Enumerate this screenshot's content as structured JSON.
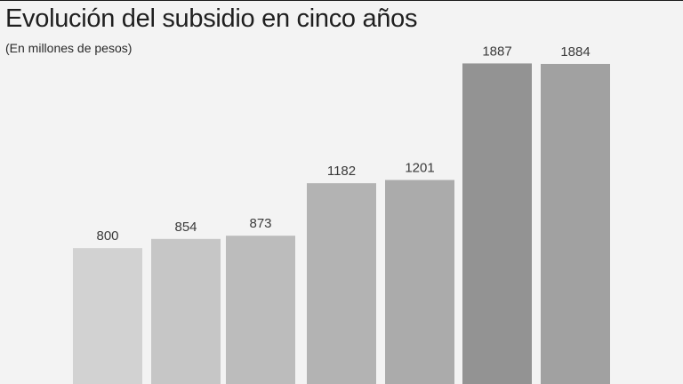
{
  "chart_data": {
    "type": "bar",
    "title": "Evolución del subsidio en cinco años",
    "subtitle": "(En millones de pesos)",
    "values": [
      800,
      854,
      873,
      1182,
      1201,
      1887,
      1884
    ],
    "data_labels": [
      "800",
      "854",
      "873",
      "1182",
      "1201",
      "1887",
      "1884"
    ],
    "bar_colors": [
      "#d2d2d2",
      "#c6c6c6",
      "#bcbcbc",
      "#b3b3b3",
      "#ababab",
      "#939393",
      "#a1a1a1"
    ],
    "grid": false,
    "legend": "none"
  }
}
